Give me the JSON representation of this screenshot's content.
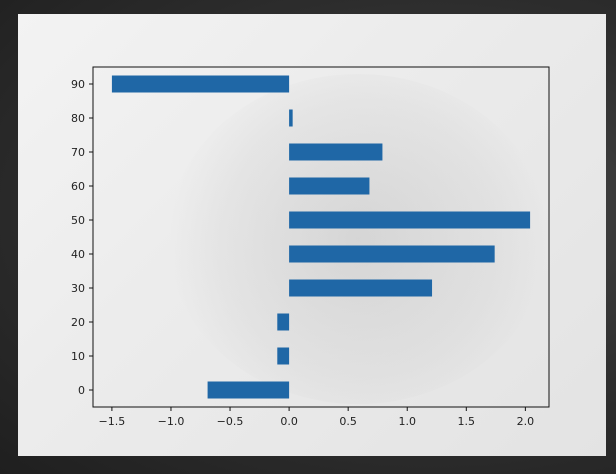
{
  "chart_data": {
    "type": "bar",
    "orientation": "horizontal",
    "categories": [
      "0",
      "10",
      "20",
      "30",
      "40",
      "50",
      "60",
      "70",
      "80",
      "90"
    ],
    "y": [
      0,
      10,
      20,
      30,
      40,
      50,
      60,
      70,
      80,
      90
    ],
    "values": [
      -0.69,
      -0.1,
      -0.1,
      1.21,
      1.74,
      2.04,
      0.68,
      0.79,
      0.03,
      -1.5
    ],
    "xlim": [
      -1.66,
      2.2
    ],
    "ylim": [
      -5,
      95
    ],
    "xticks": [
      "−1.5",
      "−1.0",
      "−0.5",
      "0.0",
      "0.5",
      "1.0",
      "1.5",
      "2.0"
    ],
    "xtick_values": [
      -1.5,
      -1.0,
      -0.5,
      0.0,
      0.5,
      1.0,
      1.5,
      2.0
    ],
    "yticks": [
      "0",
      "10",
      "20",
      "30",
      "40",
      "50",
      "60",
      "70",
      "80",
      "90"
    ],
    "ytick_values": [
      0,
      10,
      20,
      30,
      40,
      50,
      60,
      70,
      80,
      90
    ],
    "bar_height": 5,
    "bar_color": "#1f67a6",
    "title": "",
    "xlabel": "",
    "ylabel": "",
    "grid": false
  }
}
